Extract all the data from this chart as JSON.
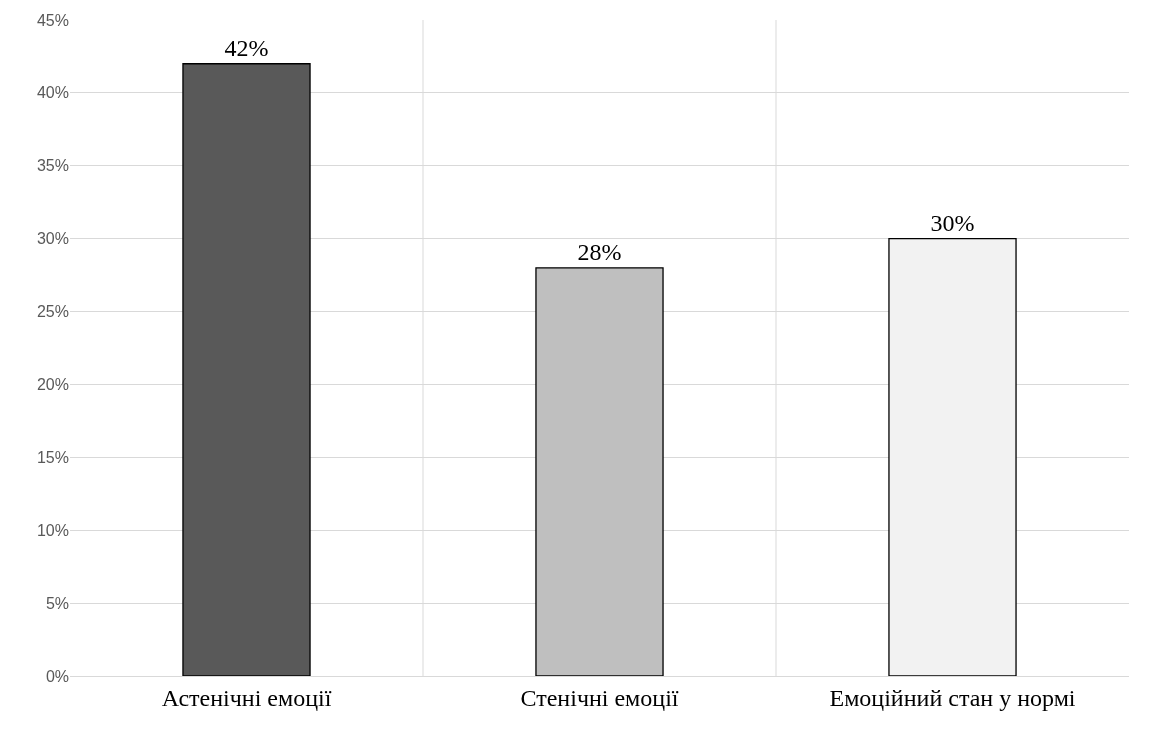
{
  "chart_data": {
    "type": "bar",
    "categories": [
      "Астенічні емоції",
      "Стенічні емоції",
      "Емоційний стан у нормі"
    ],
    "values": [
      42,
      28,
      30
    ],
    "colors": [
      "#595959",
      "#bfbfbf",
      "#f2f2f2"
    ],
    "value_labels": [
      "42%",
      "28%",
      "30%"
    ],
    "ylim": [
      0,
      45
    ],
    "yticks": [
      {
        "value": 0,
        "label": "0%"
      },
      {
        "value": 5,
        "label": "5%"
      },
      {
        "value": 10,
        "label": "10%"
      },
      {
        "value": 15,
        "label": "15%"
      },
      {
        "value": 20,
        "label": "20%"
      },
      {
        "value": 25,
        "label": "25%"
      },
      {
        "value": 30,
        "label": "30%"
      },
      {
        "value": 35,
        "label": "35%"
      },
      {
        "value": 40,
        "label": "40%"
      },
      {
        "value": 45,
        "label": "45%"
      }
    ],
    "grid": true
  }
}
